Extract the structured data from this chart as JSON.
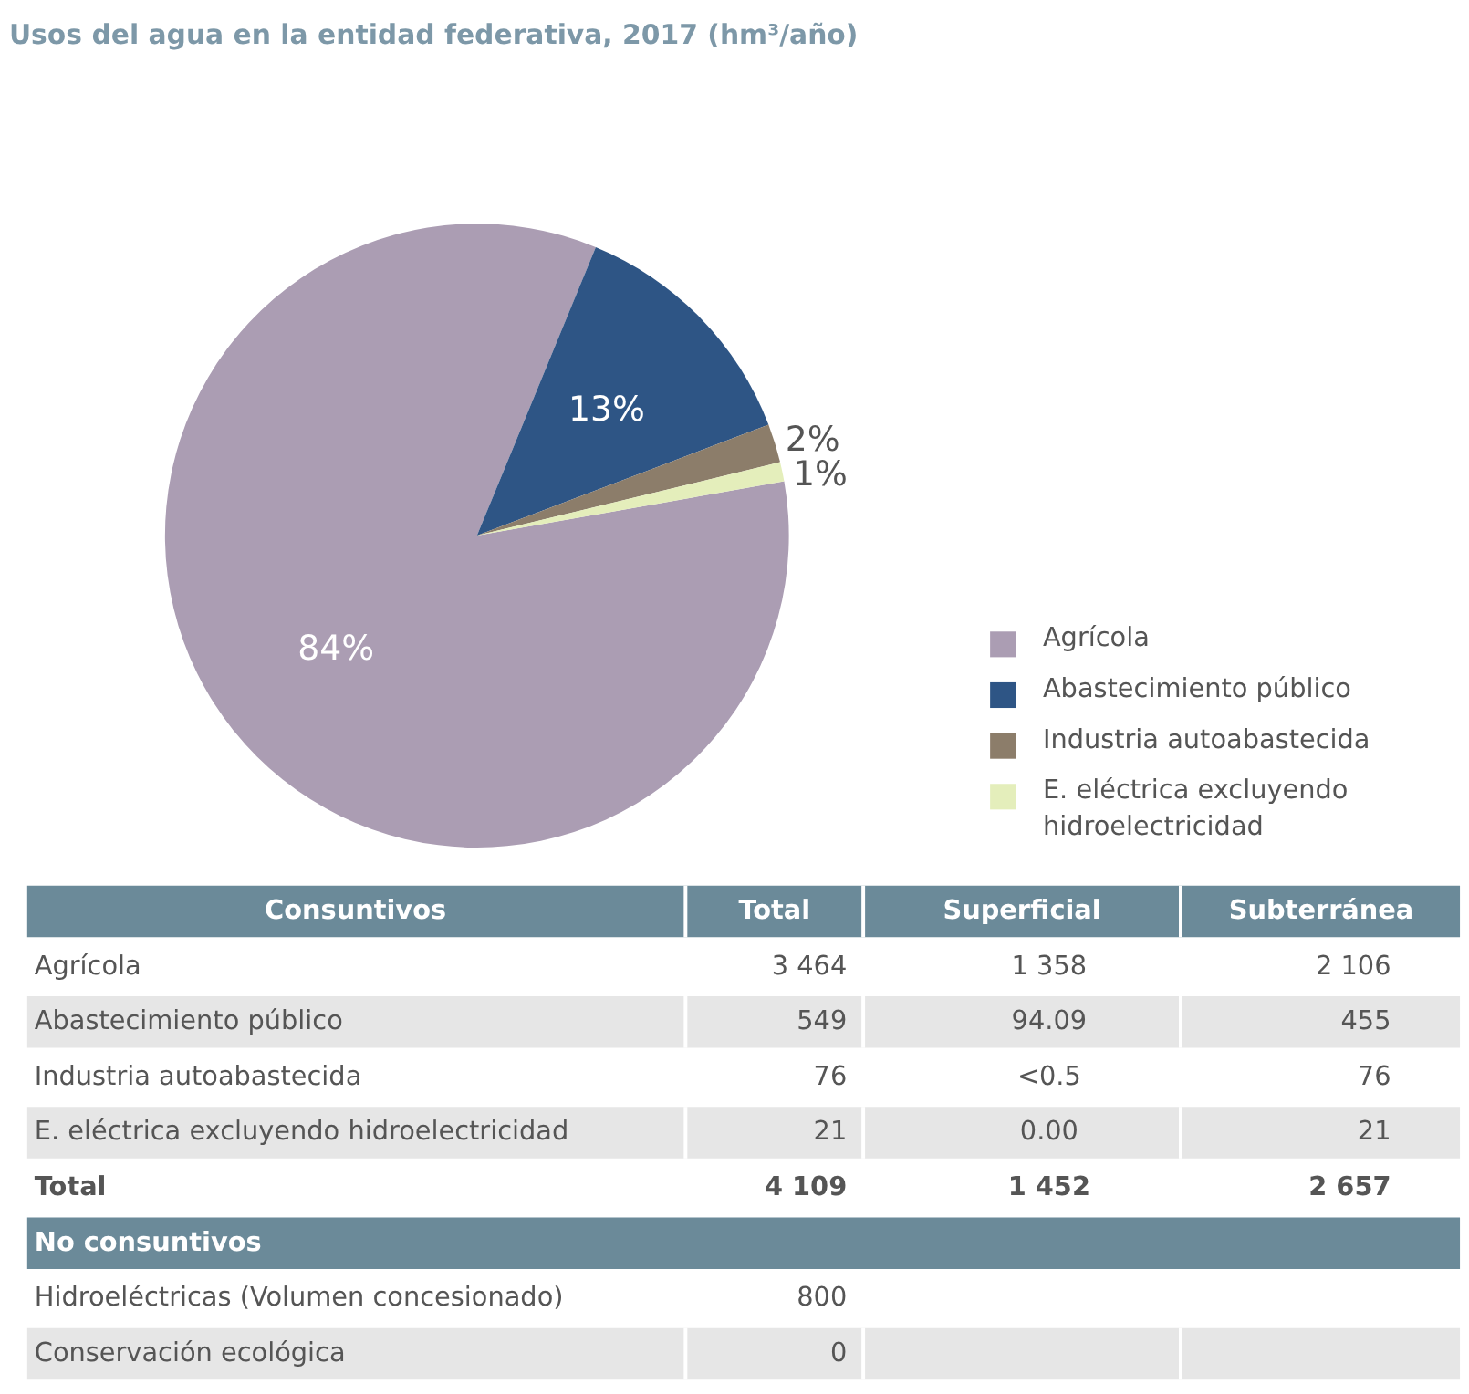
{
  "chart_data": [
    {
      "type": "pie",
      "title": "Usos del agua en la entidad federativa, 2017 (hm³/año)",
      "categories": [
        "Agrícola",
        "Abastecimiento público",
        "Industria autoabastecida",
        "E. eléctrica excluyendo hidroelectricidad"
      ],
      "values": [
        84,
        13,
        2,
        1
      ],
      "colors": [
        "#ab9db3",
        "#2e5585",
        "#8c7d6a",
        "#e4eebb"
      ],
      "value_labels": [
        "84%",
        "13%",
        "2%",
        "1%"
      ],
      "legend": "right"
    },
    {
      "type": "other",
      "categories": [
        "Consuntivos",
        "Total",
        "Superficial",
        "Subterránea"
      ],
      "y_categories": [
        "Agrícola",
        "Abastecimiento público",
        "Industria autoabastecida",
        "E. eléctrica excluyendo hidroelectricidad",
        "Total",
        "No consuntivos",
        "Hidroeléctricas (Volumen concesionado)",
        "Conservación ecológica"
      ],
      "cell_labels": [
        [
          "3 464",
          "1 358",
          "2 106"
        ],
        [
          "549",
          "94.09",
          "455"
        ],
        [
          "76",
          "<0.5",
          "76"
        ],
        [
          "21",
          "0.00",
          "21"
        ],
        [
          "4 109",
          "1 452",
          "2 657"
        ],
        [
          null,
          null,
          null
        ],
        [
          "800",
          null,
          null
        ],
        [
          "0",
          null,
          null
        ]
      ]
    }
  ]
}
